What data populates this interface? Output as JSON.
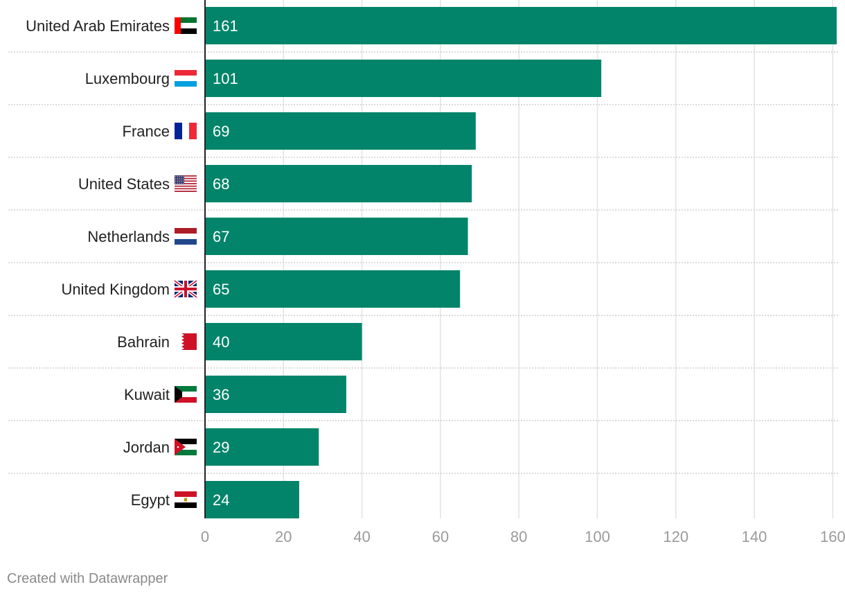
{
  "chart_data": {
    "type": "bar",
    "orientation": "horizontal",
    "title": "",
    "xlabel": "",
    "ylabel": "",
    "xlim": [
      0,
      161
    ],
    "ticks": [
      0,
      20,
      40,
      60,
      80,
      100,
      120,
      140,
      160
    ],
    "grid": true,
    "categories": [
      "United Arab Emirates",
      "Luxembourg",
      "France",
      "United States",
      "Netherlands",
      "United Kingdom",
      "Bahrain",
      "Kuwait",
      "Jordan",
      "Egypt"
    ],
    "values": [
      161,
      101,
      69,
      68,
      67,
      65,
      40,
      36,
      29,
      24
    ],
    "flags": [
      "uae-flag-icon",
      "luxembourg-flag-icon",
      "france-flag-icon",
      "usa-flag-icon",
      "netherlands-flag-icon",
      "uk-flag-icon",
      "bahrain-flag-icon",
      "kuwait-flag-icon",
      "jordan-flag-icon",
      "egypt-flag-icon"
    ],
    "bar_color": "#02846a",
    "grid_color": "#e2e2e2",
    "separator_color": "#c8c8c8"
  },
  "footer": {
    "credit": "Created with Datawrapper"
  }
}
